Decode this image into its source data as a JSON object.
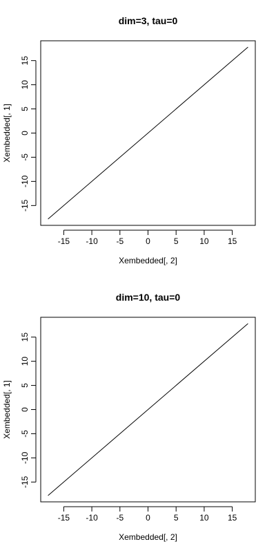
{
  "chart_data": [
    {
      "type": "line",
      "title": "dim=3, tau=0",
      "xlabel": "Xembedded[, 2]",
      "ylabel": "Xembedded[, 1]",
      "xticks": [
        -15,
        -10,
        -5,
        0,
        5,
        10,
        15
      ],
      "yticks": [
        -15,
        -10,
        -5,
        0,
        5,
        10,
        15
      ],
      "xlim": [
        -19.1,
        19.1
      ],
      "ylim": [
        -19.1,
        19.1
      ],
      "grid": false,
      "series": [
        {
          "x": [
            -17.8,
            17.8
          ],
          "y": [
            -17.8,
            17.8
          ],
          "color": "#000000"
        }
      ]
    },
    {
      "type": "line",
      "title": "dim=10, tau=0",
      "xlabel": "Xembedded[, 2]",
      "ylabel": "Xembedded[, 1]",
      "xticks": [
        -15,
        -10,
        -5,
        0,
        5,
        10,
        15
      ],
      "yticks": [
        -15,
        -10,
        -5,
        0,
        5,
        10,
        15
      ],
      "xlim": [
        -19.1,
        19.1
      ],
      "ylim": [
        -19.1,
        19.1
      ],
      "grid": false,
      "series": [
        {
          "x": [
            -17.8,
            17.8
          ],
          "y": [
            -17.8,
            17.8
          ],
          "color": "#000000"
        }
      ]
    }
  ]
}
